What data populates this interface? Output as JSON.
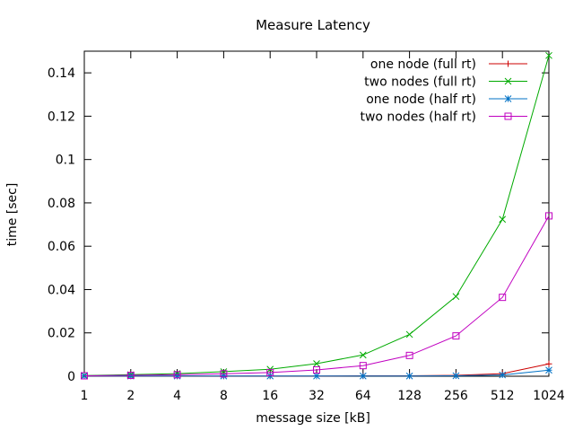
{
  "chart_data": {
    "type": "line",
    "title": "Measure Latency",
    "xlabel": "message size [kB]",
    "ylabel": "time [sec]",
    "x_scale": "log2",
    "x": [
      1,
      2,
      4,
      8,
      16,
      32,
      64,
      128,
      256,
      512,
      1024
    ],
    "x_tick_labels": [
      "1",
      "2",
      "4",
      "8",
      "16",
      "32",
      "64",
      "128",
      "256",
      "512",
      "1024"
    ],
    "ylim": [
      0,
      0.15
    ],
    "y_ticks": [
      0,
      0.02,
      0.04,
      0.06,
      0.08,
      0.1,
      0.12,
      0.14
    ],
    "y_tick_labels": [
      "0",
      "0.02",
      "0.04",
      "0.06",
      "0.08",
      "0.1",
      "0.12",
      "0.14"
    ],
    "grid": false,
    "legend_position": "top-right",
    "series": [
      {
        "name": "one node (full rt)",
        "color": "#cc0000",
        "marker": "plus",
        "values": [
          0.0001,
          0.0001,
          0.0001,
          0.0001,
          0.0001,
          0.0001,
          0.0002,
          0.0002,
          0.0004,
          0.0012,
          0.0057
        ]
      },
      {
        "name": "two nodes (full rt)",
        "color": "#00aa00",
        "marker": "cross",
        "values": [
          0.0003,
          0.0007,
          0.0012,
          0.0021,
          0.0032,
          0.0058,
          0.0098,
          0.0193,
          0.0368,
          0.0724,
          0.148
        ]
      },
      {
        "name": "one node (half rt)",
        "color": "#0072c6",
        "marker": "star",
        "values": [
          0.0001,
          0.0001,
          0.0001,
          0.0001,
          0.0001,
          0.0001,
          0.0001,
          0.0001,
          0.0002,
          0.0006,
          0.0028
        ]
      },
      {
        "name": "two nodes (half rt)",
        "color": "#c000c0",
        "marker": "box",
        "values": [
          0.0002,
          0.0004,
          0.0007,
          0.0011,
          0.0017,
          0.0029,
          0.0049,
          0.0096,
          0.0186,
          0.0364,
          0.074
        ]
      }
    ]
  }
}
